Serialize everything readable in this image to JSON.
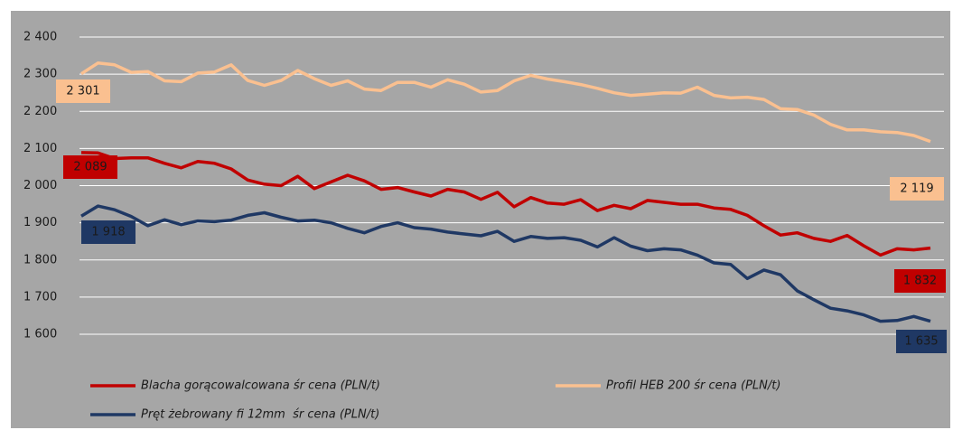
{
  "chart_data": {
    "type": "line",
    "ylim": [
      1600,
      2400
    ],
    "yticks": [
      {
        "value": 1600,
        "label": "1 600"
      },
      {
        "value": 1700,
        "label": "1 700"
      },
      {
        "value": 1800,
        "label": "1 800"
      },
      {
        "value": 1900,
        "label": "1 900"
      },
      {
        "value": 2000,
        "label": "2 000"
      },
      {
        "value": 2100,
        "label": "2 100"
      },
      {
        "value": 2200,
        "label": "2 200"
      },
      {
        "value": 2300,
        "label": "2 300"
      },
      {
        "value": 2400,
        "label": "2 400"
      }
    ],
    "grid": true,
    "series": [
      {
        "name": "Blacha gorącowalcowana śr cena (PLN/t)",
        "color": "#c00000",
        "values": [
          2089,
          2088,
          2073,
          2075,
          2075,
          2060,
          2048,
          2065,
          2060,
          2045,
          2015,
          2004,
          2000,
          2025,
          1992,
          2010,
          2028,
          2013,
          1990,
          1995,
          1983,
          1972,
          1990,
          1983,
          1963,
          1982,
          1943,
          1968,
          1953,
          1950,
          1962,
          1933,
          1947,
          1938,
          1960,
          1955,
          1950,
          1950,
          1940,
          1936,
          1920,
          1892,
          1867,
          1873,
          1858,
          1850,
          1866,
          1838,
          1813,
          1830,
          1827,
          1832
        ],
        "value_labels": [
          "2 089",
          null,
          null,
          null,
          null,
          null,
          null,
          null,
          null,
          null,
          null,
          null,
          null,
          null,
          null,
          null,
          null,
          null,
          null,
          null,
          null,
          null,
          null,
          null,
          null,
          null,
          null,
          null,
          null,
          null,
          null,
          null,
          null,
          null,
          null,
          null,
          null,
          null,
          null,
          null,
          null,
          null,
          null,
          null,
          null,
          null,
          null,
          null,
          null,
          null,
          null,
          "1 832"
        ]
      },
      {
        "name": "Profil HEB 200 śr cena (PLN/t)",
        "color": "#fac090",
        "values": [
          2301,
          2330,
          2325,
          2305,
          2307,
          2282,
          2280,
          2303,
          2306,
          2325,
          2283,
          2270,
          2283,
          2310,
          2288,
          2270,
          2282,
          2260,
          2256,
          2278,
          2278,
          2265,
          2285,
          2273,
          2252,
          2256,
          2282,
          2297,
          2287,
          2280,
          2272,
          2262,
          2250,
          2243,
          2246,
          2250,
          2249,
          2265,
          2243,
          2236,
          2238,
          2232,
          2207,
          2205,
          2190,
          2165,
          2150,
          2150,
          2145,
          2143,
          2135,
          2119
        ],
        "value_labels": [
          "2 301",
          null,
          null,
          null,
          null,
          null,
          null,
          null,
          null,
          null,
          null,
          null,
          null,
          null,
          null,
          null,
          null,
          null,
          null,
          null,
          null,
          null,
          null,
          null,
          null,
          null,
          null,
          null,
          null,
          null,
          null,
          null,
          null,
          null,
          null,
          null,
          null,
          null,
          null,
          null,
          null,
          null,
          null,
          null,
          null,
          null,
          null,
          null,
          null,
          null,
          null,
          "2 119"
        ]
      },
      {
        "name": "Pręt żebrowany fi 12mm  śr cena (PLN/t)",
        "color": "#1f3864",
        "values": [
          1918,
          1945,
          1935,
          1917,
          1892,
          1908,
          1895,
          1905,
          1903,
          1907,
          1920,
          1927,
          1915,
          1905,
          1907,
          1900,
          1885,
          1873,
          1890,
          1900,
          1887,
          1883,
          1875,
          1870,
          1865,
          1877,
          1850,
          1863,
          1858,
          1860,
          1853,
          1835,
          1860,
          1837,
          1825,
          1830,
          1827,
          1813,
          1792,
          1788,
          1750,
          1773,
          1760,
          1717,
          1693,
          1670,
          1663,
          1652,
          1635,
          1637,
          1648,
          1635
        ],
        "value_labels": [
          "1 918",
          null,
          null,
          null,
          null,
          null,
          null,
          null,
          null,
          null,
          null,
          null,
          null,
          null,
          null,
          null,
          null,
          null,
          null,
          null,
          null,
          null,
          null,
          null,
          null,
          null,
          null,
          null,
          null,
          null,
          null,
          null,
          null,
          null,
          null,
          null,
          null,
          null,
          null,
          null,
          null,
          null,
          null,
          null,
          null,
          null,
          null,
          null,
          null,
          null,
          null,
          "1 635"
        ]
      }
    ]
  }
}
